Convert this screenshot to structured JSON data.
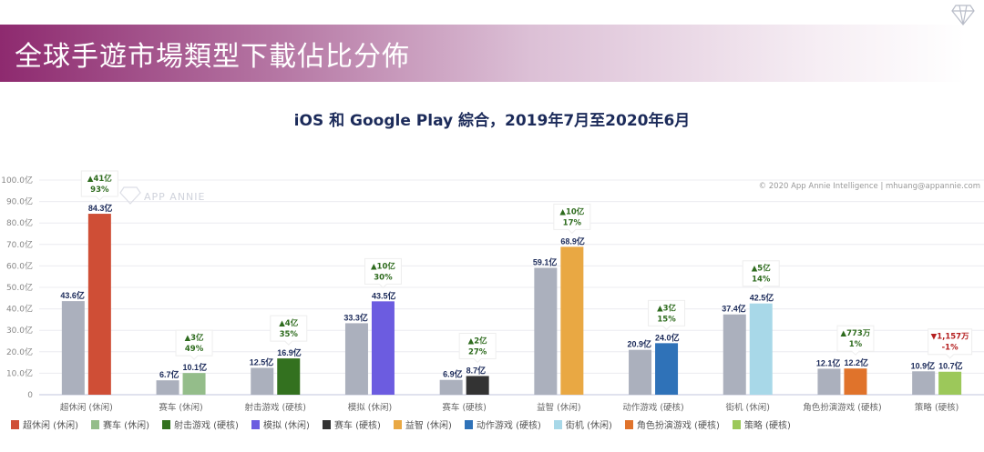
{
  "header": {
    "title": "全球手遊市場類型下載佔比分佈"
  },
  "chart_data": {
    "type": "bar",
    "title": "iOS 和 Google Play 綜合，2019年7月至2020年6月",
    "watermark": "APP ANNIE",
    "credit": "© 2020 App Annie Intelligence | mhuang@appannie.com",
    "ylim": [
      0,
      100
    ],
    "unit": "亿",
    "yticks": [
      "0",
      "10.0亿",
      "20.0亿",
      "30.0亿",
      "40.0亿",
      "50.0亿",
      "60.0亿",
      "70.0亿",
      "80.0亿",
      "90.0亿",
      "100.0亿"
    ],
    "categories": [
      "超休闲 (休闲)",
      "赛车 (休闲)",
      "射击游戏 (硬核)",
      "模拟 (休闲)",
      "赛车 (硬核)",
      "益智 (休闲)",
      "动作游戏 (硬核)",
      "街机 (休闲)",
      "角色扮演游戏 (硬核)",
      "策略 (硬核)"
    ],
    "series": [
      {
        "name": "previous",
        "color": "#abb0bd",
        "values": [
          43.6,
          6.7,
          12.5,
          33.3,
          6.9,
          59.1,
          20.9,
          37.4,
          12.1,
          10.9
        ],
        "labels": [
          "43.6亿",
          "6.7亿",
          "12.5亿",
          "33.3亿",
          "6.9亿",
          "59.1亿",
          "20.9亿",
          "37.4亿",
          "12.1亿",
          "10.9亿"
        ]
      },
      {
        "name": "current",
        "colors": [
          "#cf4e36",
          "#94bd8a",
          "#33711f",
          "#6c5ce0",
          "#333333",
          "#e9a843",
          "#2f72b8",
          "#a8d8e8",
          "#e0732b",
          "#9cc85a"
        ],
        "values": [
          84.3,
          10.1,
          16.9,
          43.5,
          8.7,
          68.9,
          24.0,
          42.5,
          12.2,
          10.7
        ],
        "labels": [
          "84.3亿",
          "10.1亿",
          "16.9亿",
          "43.5亿",
          "8.7亿",
          "68.9亿",
          "24.0亿",
          "42.5亿",
          "12.2亿",
          "10.7亿"
        ]
      }
    ],
    "changes": [
      {
        "abs": "▲41亿",
        "pct": "93%",
        "up": true
      },
      {
        "abs": "▲3亿",
        "pct": "49%",
        "up": true
      },
      {
        "abs": "▲4亿",
        "pct": "35%",
        "up": true
      },
      {
        "abs": "▲10亿",
        "pct": "30%",
        "up": true
      },
      {
        "abs": "▲2亿",
        "pct": "27%",
        "up": true
      },
      {
        "abs": "▲10亿",
        "pct": "17%",
        "up": true
      },
      {
        "abs": "▲3亿",
        "pct": "15%",
        "up": true
      },
      {
        "abs": "▲5亿",
        "pct": "14%",
        "up": true
      },
      {
        "abs": "▲773万",
        "pct": "1%",
        "up": true
      },
      {
        "abs": "▼1,157万",
        "pct": "-1%",
        "up": false
      }
    ],
    "colors": {
      "up": "#2e6b1e",
      "down": "#b52020",
      "text": "#1c2b5a"
    }
  }
}
